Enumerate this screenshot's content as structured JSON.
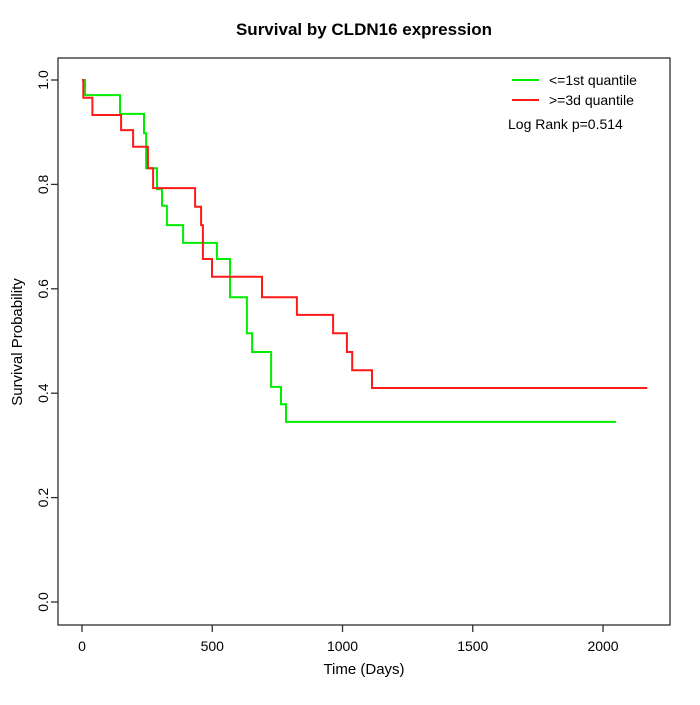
{
  "chart_data": {
    "type": "line",
    "subtype": "kaplan-meier-step",
    "title": "Survival by CLDN16 expression",
    "xlabel": "Time (Days)",
    "ylabel": "Survival Probability",
    "grid": false,
    "legend_position": "top-right",
    "annotation": "Log Rank p=0.514",
    "x_ticks": [
      0,
      500,
      1000,
      1500,
      2000
    ],
    "x_tick_labels": [
      "0",
      "500",
      "1000",
      "1500",
      "2000"
    ],
    "y_ticks": [
      0.0,
      0.2,
      0.4,
      0.6,
      0.8,
      1.0
    ],
    "y_tick_labels": [
      "0.0",
      "0.2",
      "0.4",
      "0.6",
      "0.8",
      "1.0"
    ],
    "xlim": [
      -90,
      2260
    ],
    "ylim": [
      -0.04,
      1.04
    ],
    "series": [
      {
        "name": "<=1st quantile",
        "color": "#00ee00",
        "end_day": 2050,
        "steps": [
          [
            0,
            1.0
          ],
          [
            12,
            0.971
          ],
          [
            146,
            0.935
          ],
          [
            238,
            0.898
          ],
          [
            246,
            0.831
          ],
          [
            288,
            0.791
          ],
          [
            307,
            0.759
          ],
          [
            326,
            0.722
          ],
          [
            388,
            0.688
          ],
          [
            518,
            0.657
          ],
          [
            568,
            0.584
          ],
          [
            633,
            0.515
          ],
          [
            653,
            0.479
          ],
          [
            726,
            0.412
          ],
          [
            764,
            0.379
          ],
          [
            783,
            0.345
          ]
        ]
      },
      {
        "name": ">=3d quantile",
        "color": "#ff1a1a",
        "end_day": 2170,
        "steps": [
          [
            0,
            1.0
          ],
          [
            5,
            0.966
          ],
          [
            40,
            0.933
          ],
          [
            150,
            0.904
          ],
          [
            196,
            0.872
          ],
          [
            253,
            0.831
          ],
          [
            273,
            0.793
          ],
          [
            434,
            0.757
          ],
          [
            457,
            0.722
          ],
          [
            464,
            0.657
          ],
          [
            499,
            0.623
          ],
          [
            691,
            0.584
          ],
          [
            825,
            0.55
          ],
          [
            964,
            0.515
          ],
          [
            1017,
            0.479
          ],
          [
            1037,
            0.444
          ],
          [
            1113,
            0.41
          ]
        ]
      }
    ]
  }
}
